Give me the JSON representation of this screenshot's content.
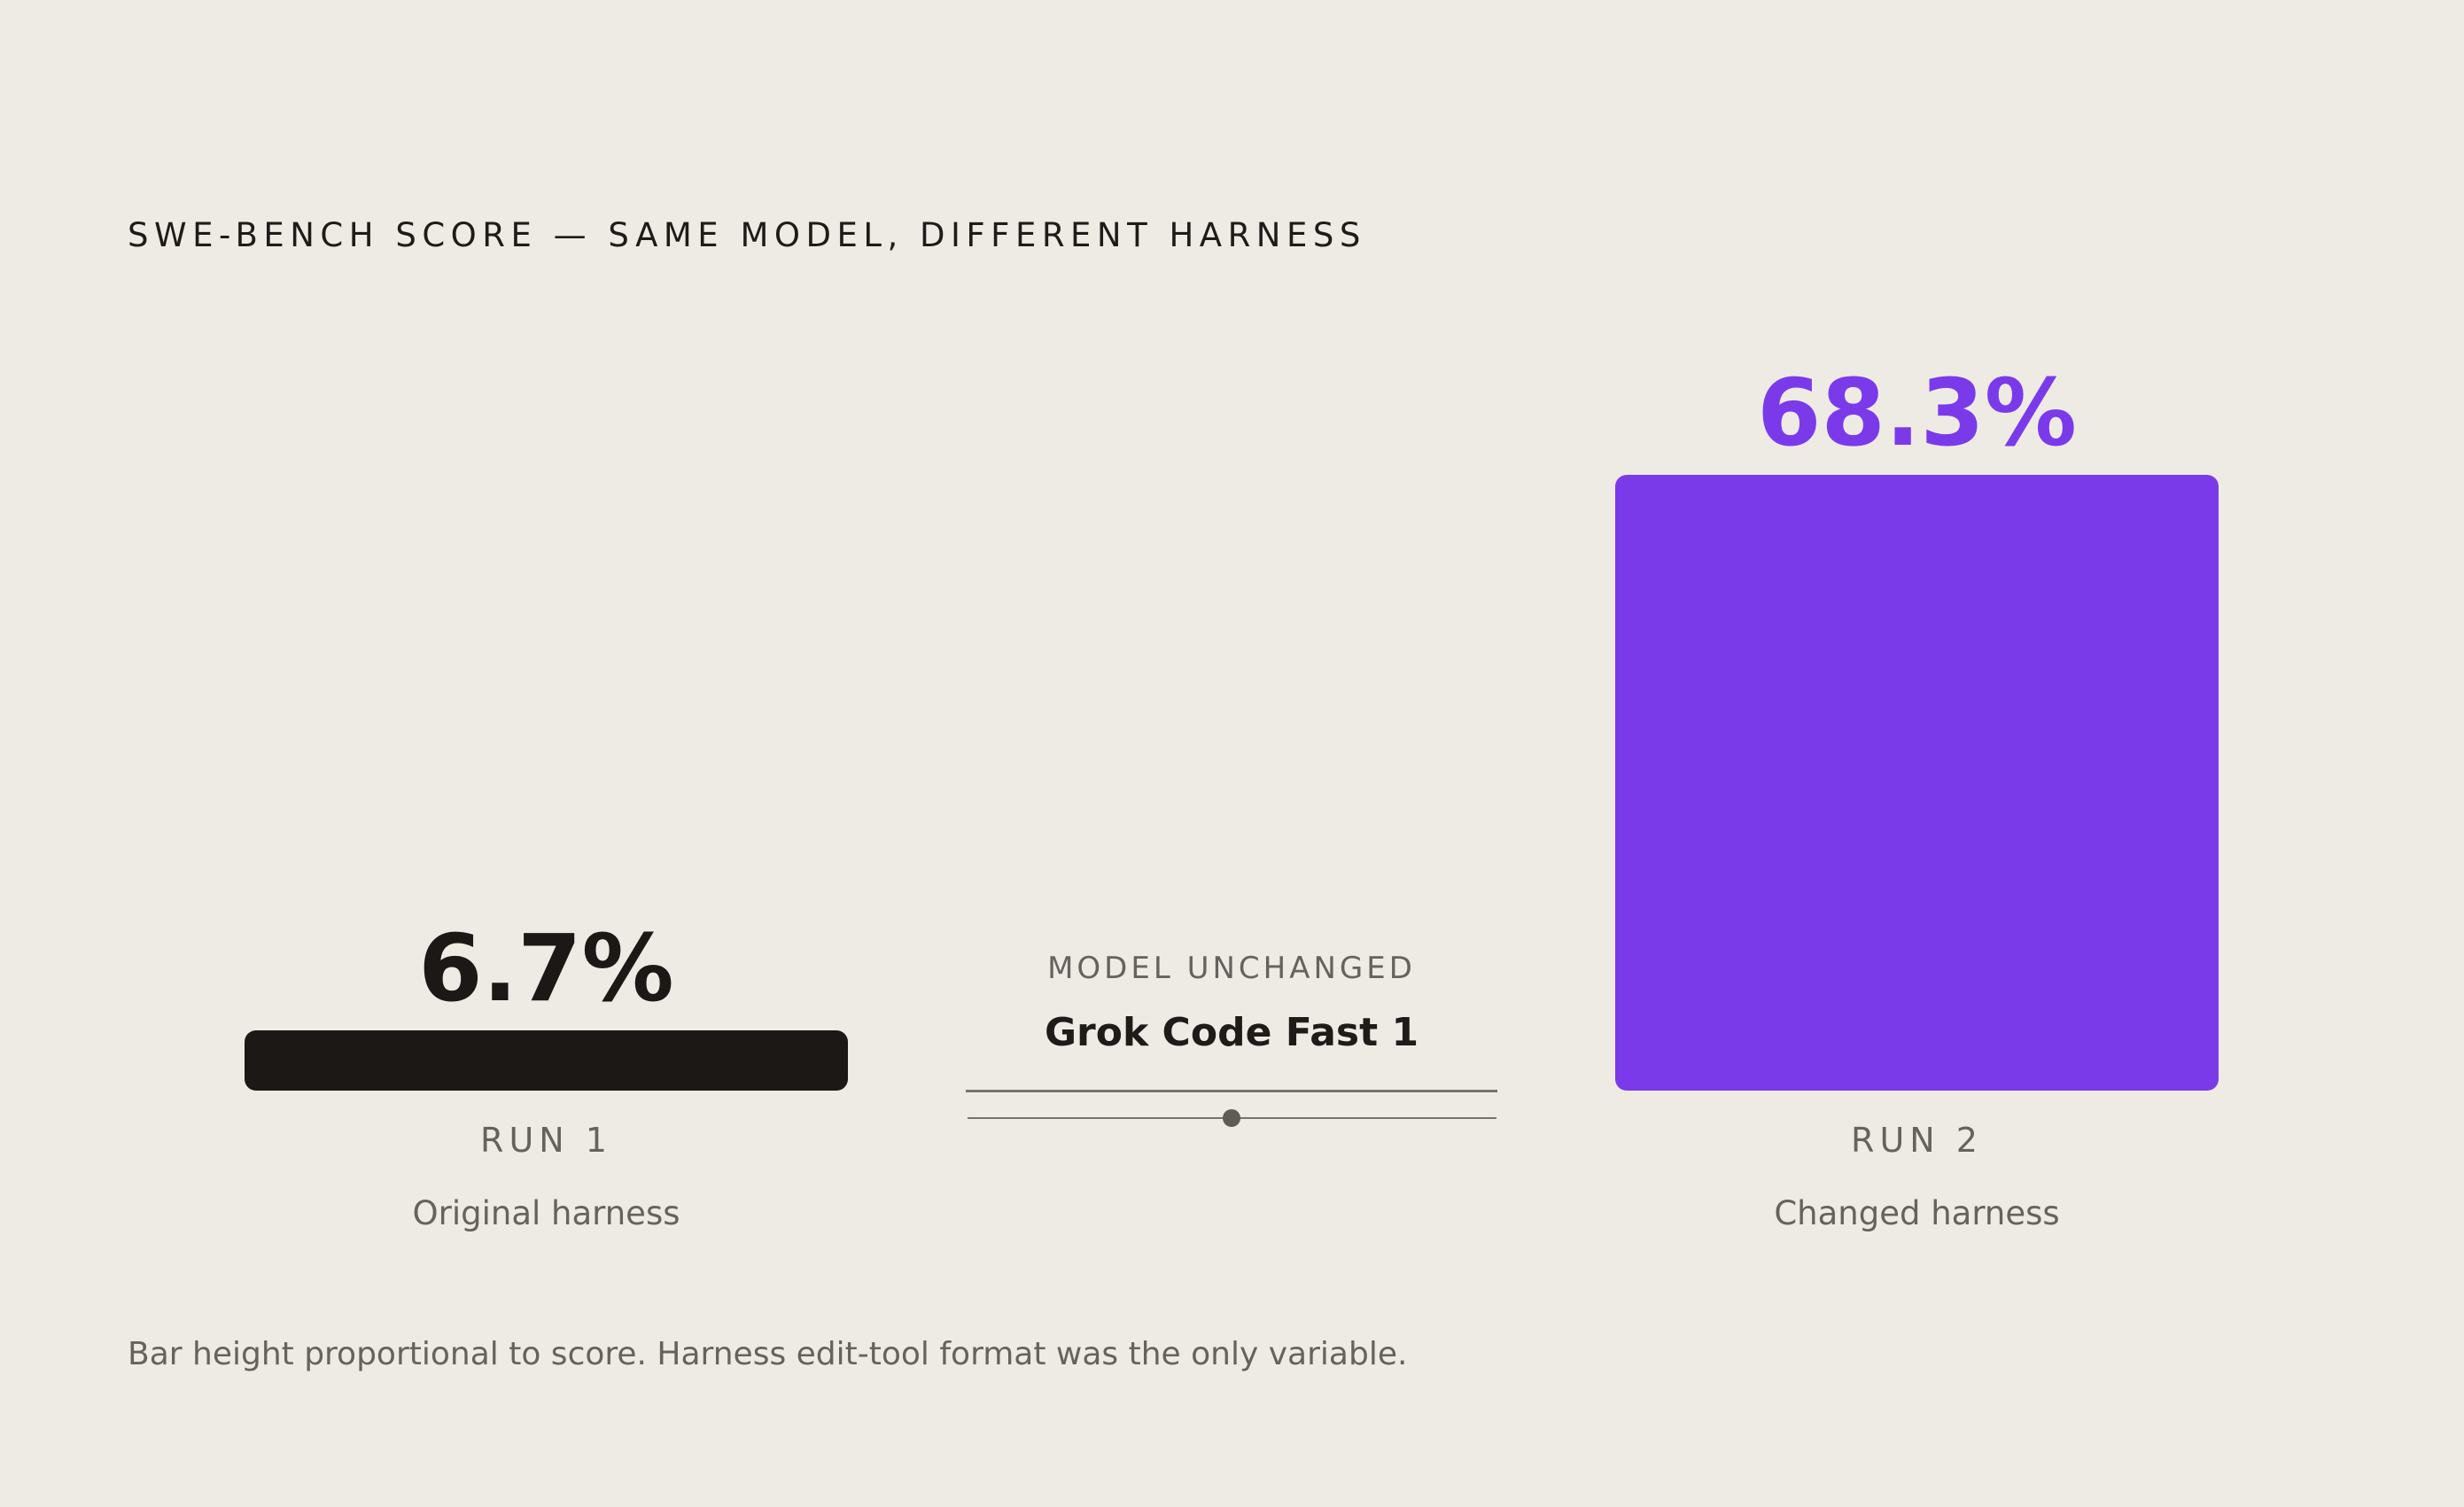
{
  "chart_data": {
    "type": "bar",
    "title": "SWE-BENCH SCORE — SAME MODEL, DIFFERENT HARNESS",
    "categories": [
      "RUN 1",
      "RUN 2"
    ],
    "category_descriptions": [
      "Original harness",
      "Changed harness"
    ],
    "values": [
      6.7,
      68.3
    ],
    "value_labels": [
      "6.7%",
      "68.3%"
    ],
    "unit": "%",
    "colors": [
      "#1c1815",
      "#7b3aea"
    ],
    "label_colors": [
      "#1c1815",
      "#7b3aea"
    ],
    "center_annotation": {
      "caption": "MODEL UNCHANGED",
      "model": "Grok Code Fast 1"
    },
    "footnote": "Bar height proportional to score. Harness edit-tool format was the only variable."
  }
}
